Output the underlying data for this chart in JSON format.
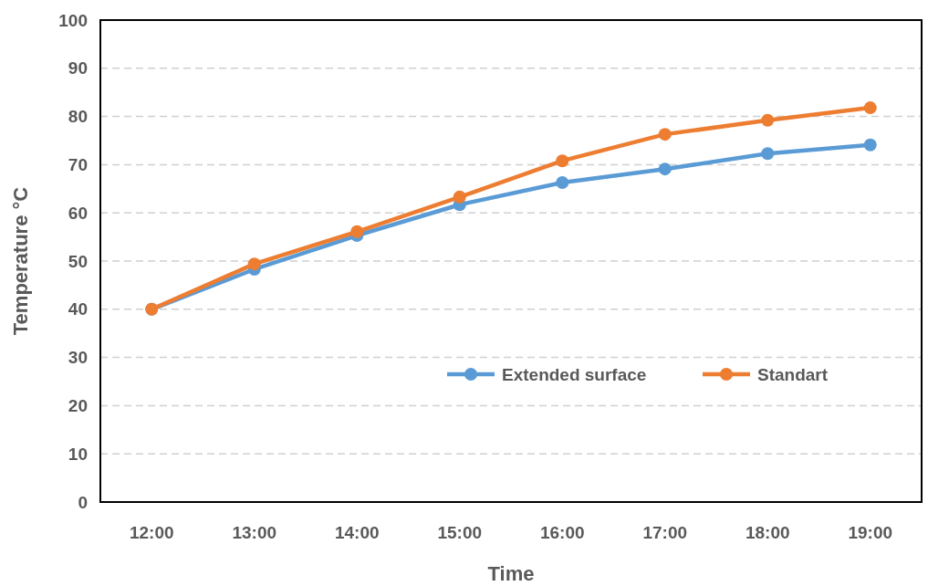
{
  "chart_data": {
    "type": "line",
    "xlabel": "Time",
    "ylabel": "Temperature °C",
    "categories": [
      "12:00",
      "13:00",
      "14:00",
      "15:00",
      "16:00",
      "17:00",
      "18:00",
      "19:00"
    ],
    "series": [
      {
        "name": "Extended surface",
        "color": "#5b9bd5",
        "values": [
          40,
          48.3,
          55.3,
          61.7,
          66.3,
          69.1,
          72.3,
          74.1
        ]
      },
      {
        "name": "Standart",
        "color": "#ed7d31",
        "values": [
          40,
          49.4,
          56.1,
          63.3,
          70.8,
          76.3,
          79.2,
          81.8
        ]
      }
    ],
    "ylim": [
      0,
      100
    ],
    "yticks": [
      0,
      10,
      20,
      30,
      40,
      50,
      60,
      70,
      80,
      90,
      100
    ],
    "grid": "y",
    "legend": "bottom right",
    "marker": "circle",
    "line_style": "solid"
  }
}
